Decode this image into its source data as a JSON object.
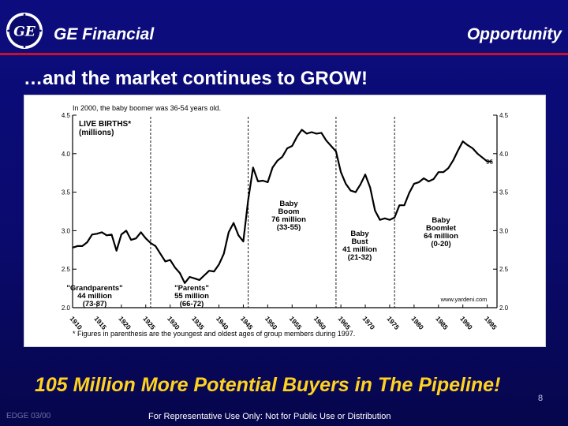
{
  "header": {
    "logo_text": "GE",
    "brand": "GE Financial",
    "section": "Opportunity"
  },
  "slide_title": "…and the market continues to GROW!",
  "chart_data": {
    "type": "line",
    "note_top": "In 2000, the baby boomer was 36-54 years old.",
    "title": "LIVE BIRTHS*",
    "unit": "(millions)",
    "ylim": [
      2.0,
      4.5
    ],
    "yticks": [
      "2.0",
      "2.5",
      "3.0",
      "3.5",
      "4.0",
      "4.5"
    ],
    "xlim": [
      1910,
      1997
    ],
    "xticks": [
      "1910",
      "1915",
      "1920",
      "1925",
      "1930",
      "1935",
      "1940",
      "1945",
      "1950",
      "1955",
      "1960",
      "1965",
      "1970",
      "1975",
      "1980",
      "1985",
      "1990",
      "1995"
    ],
    "end_label": "96",
    "grid": false,
    "x": [
      1910,
      1911,
      1912,
      1913,
      1914,
      1915,
      1916,
      1917,
      1918,
      1919,
      1920,
      1921,
      1922,
      1923,
      1924,
      1925,
      1926,
      1927,
      1928,
      1929,
      1930,
      1931,
      1932,
      1933,
      1934,
      1935,
      1936,
      1937,
      1938,
      1939,
      1940,
      1941,
      1942,
      1943,
      1944,
      1945,
      1946,
      1947,
      1948,
      1949,
      1950,
      1951,
      1952,
      1953,
      1954,
      1955,
      1956,
      1957,
      1958,
      1959,
      1960,
      1961,
      1962,
      1963,
      1964,
      1965,
      1966,
      1967,
      1968,
      1969,
      1970,
      1971,
      1972,
      1973,
      1974,
      1975,
      1976,
      1977,
      1978,
      1979,
      1980,
      1981,
      1982,
      1983,
      1984,
      1985,
      1986,
      1987,
      1988,
      1989,
      1990,
      1991,
      1992,
      1993,
      1994,
      1995,
      1996
    ],
    "y": [
      2.78,
      2.8,
      2.8,
      2.85,
      2.95,
      2.96,
      2.98,
      2.94,
      2.95,
      2.74,
      2.95,
      3.0,
      2.88,
      2.9,
      2.98,
      2.9,
      2.84,
      2.8,
      2.7,
      2.6,
      2.62,
      2.52,
      2.45,
      2.32,
      2.4,
      2.38,
      2.36,
      2.42,
      2.48,
      2.47,
      2.56,
      2.7,
      2.98,
      3.1,
      2.94,
      2.86,
      3.4,
      3.82,
      3.64,
      3.65,
      3.63,
      3.82,
      3.91,
      3.96,
      4.07,
      4.1,
      4.22,
      4.31,
      4.26,
      4.28,
      4.26,
      4.27,
      4.17,
      4.1,
      4.03,
      3.76,
      3.61,
      3.52,
      3.5,
      3.6,
      3.73,
      3.56,
      3.26,
      3.14,
      3.16,
      3.14,
      3.17,
      3.33,
      3.33,
      3.49,
      3.61,
      3.63,
      3.68,
      3.64,
      3.67,
      3.76,
      3.76,
      3.81,
      3.91,
      4.04,
      4.16,
      4.11,
      4.07,
      4.0,
      3.95,
      3.9,
      3.9
    ],
    "annotations": [
      {
        "id": "grandparents",
        "lines": [
          "\"Grandparents\"",
          "44 million",
          "(73-87)"
        ]
      },
      {
        "id": "parents",
        "lines": [
          "\"Parents\"",
          "55 million",
          "(66-72)"
        ]
      },
      {
        "id": "boom",
        "lines": [
          "Baby",
          "Boom",
          "76 million",
          "(33-55)"
        ]
      },
      {
        "id": "bust",
        "lines": [
          "Baby",
          "Bust",
          "41 million",
          "(21-32)"
        ]
      },
      {
        "id": "boomlet",
        "lines": [
          "Baby",
          "Boomlet",
          "64 million",
          "(0-20)"
        ]
      }
    ],
    "source": "www.yardeni.com",
    "footnote": "* Figures in parenthesis are the youngest and oldest ages of group members during 1997."
  },
  "tagline": "105 Million More Potential Buyers in The Pipeline!",
  "page_number": "8",
  "footer": {
    "code": "EDGE 03/00",
    "disclaimer": "For Representative Use Only: Not for Public Use or Distribution"
  },
  "colors": {
    "background": "#0a0a6e",
    "accent_rule": "#c8102e",
    "tagline": "#ffd21f",
    "chart_line": "#000000"
  }
}
